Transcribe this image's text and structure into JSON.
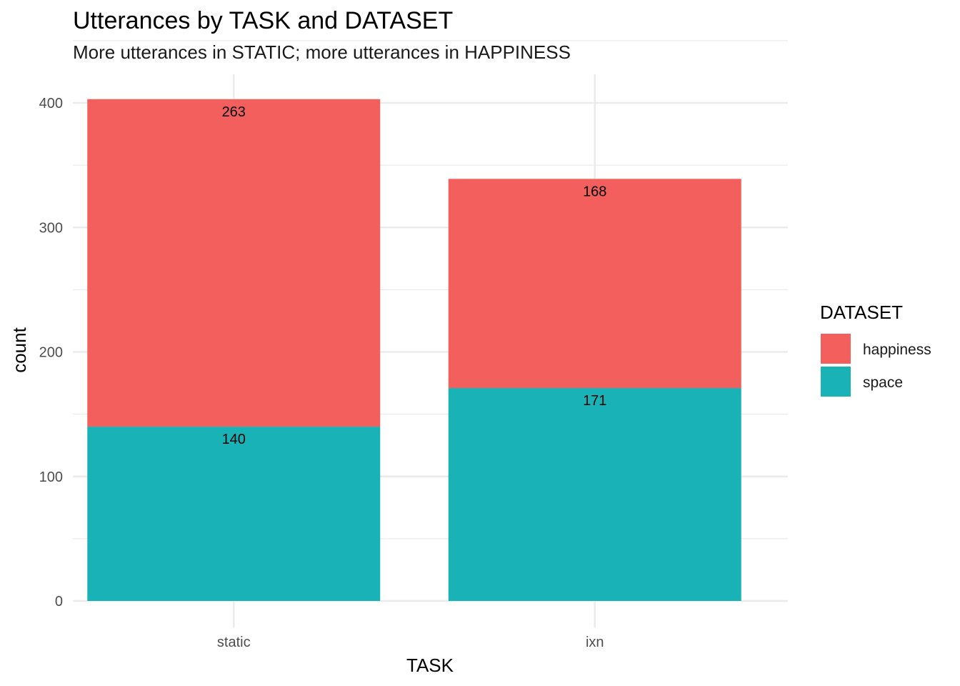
{
  "chart_data": {
    "type": "bar",
    "stacked": true,
    "title": "Utterances by TASK and DATASET",
    "subtitle": "More utterances in STATIC; more utterances in HAPPINESS",
    "xlabel": "TASK",
    "ylabel": "count",
    "categories": [
      "static",
      "ixn"
    ],
    "series": [
      {
        "name": "space",
        "values": [
          140,
          171
        ],
        "color": "#19B3B7"
      },
      {
        "name": "happiness",
        "values": [
          263,
          168
        ],
        "color": "#F25F5C"
      }
    ],
    "ylim": [
      0,
      415
    ],
    "yticks": [
      0,
      100,
      200,
      300,
      400
    ],
    "grid": true,
    "legend": {
      "title": "DATASET",
      "placement": "right",
      "entries": [
        "happiness",
        "space"
      ]
    }
  }
}
